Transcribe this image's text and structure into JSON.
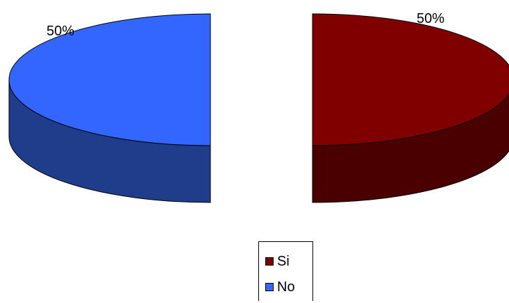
{
  "chart_data": {
    "type": "pie",
    "style": "3d-exploded",
    "title": "",
    "categories": [
      "Si",
      "No"
    ],
    "values": [
      50,
      50
    ],
    "data_labels": [
      "50%",
      "50%"
    ],
    "colors": {
      "Si": {
        "top": "#800000",
        "side": "#4a0000"
      },
      "No": {
        "top": "#3366ff",
        "side": "#1f3d8a"
      }
    },
    "legend": {
      "position": "bottom-center",
      "items": [
        {
          "label": "Si",
          "color": "#800000"
        },
        {
          "label": "No",
          "color": "#3366ff"
        }
      ]
    }
  }
}
